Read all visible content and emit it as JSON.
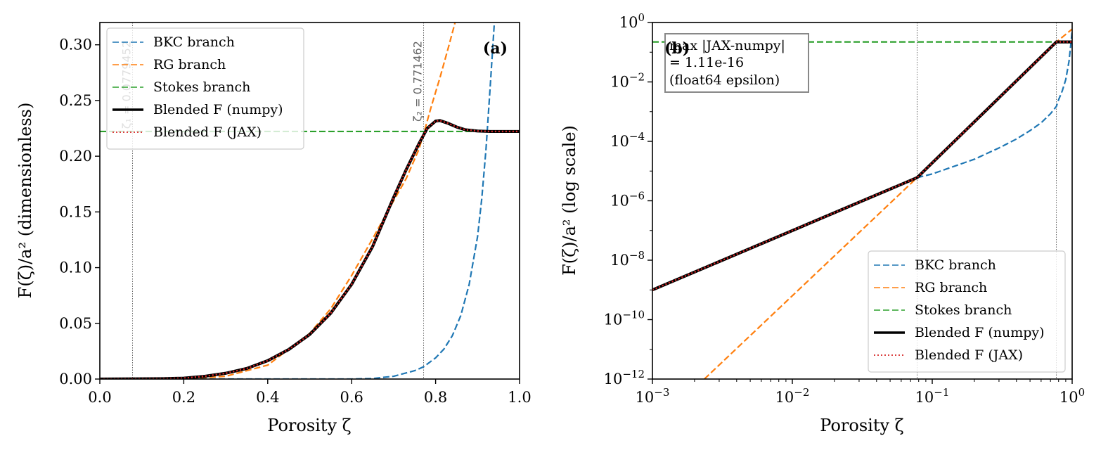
{
  "colors": {
    "bkc": "#1f77b4",
    "rg": "#ff7f0e",
    "stokes": "#2ca02c",
    "numpy": "#000000",
    "jax": "#d62728",
    "vline": "#555555"
  },
  "chart_data": [
    {
      "type": "line",
      "panel_label": "(a)",
      "title": "",
      "xlabel": "Porosity  ζ",
      "ylabel": "F(ζ)/a² (dimensionless)",
      "xlim": [
        0.0,
        1.0
      ],
      "ylim": [
        0.0,
        0.32
      ],
      "yscale": "linear",
      "xticks": [
        0.0,
        0.2,
        0.4,
        0.6,
        0.8,
        1.0
      ],
      "xtick_labels": [
        "0.0",
        "0.2",
        "0.4",
        "0.6",
        "0.8",
        "1.0"
      ],
      "yticks": [
        0.0,
        0.05,
        0.1,
        0.15,
        0.2,
        0.25,
        0.3
      ],
      "ytick_labels": [
        "0.00",
        "0.05",
        "0.10",
        "0.15",
        "0.20",
        "0.25",
        "0.30"
      ],
      "legend_position": "top-left",
      "vlines": [
        {
          "x": 0.0779452,
          "label": "ζ₁ = 0.0779452"
        },
        {
          "x": 0.771462,
          "label": "ζ₂ = 0.771462"
        }
      ],
      "series": [
        {
          "name": "BKC branch",
          "style": "dashed",
          "color_key": "bkc",
          "x": [
            0.0,
            0.1,
            0.2,
            0.3,
            0.4,
            0.5,
            0.6,
            0.65,
            0.7,
            0.75,
            0.771462,
            0.8,
            0.82,
            0.84,
            0.86,
            0.88,
            0.9,
            0.91,
            0.92,
            0.93,
            0.94
          ],
          "y": [
            0.0,
            2e-07,
            9e-07,
            2.1e-06,
            4.4e-06,
            8.5e-06,
            1.63e-05,
            0.00048,
            0.0025,
            0.0075,
            0.011,
            0.019,
            0.027,
            0.039,
            0.057,
            0.085,
            0.128,
            0.162,
            0.206,
            0.262,
            0.32
          ]
        },
        {
          "name": "RG branch",
          "style": "dashed",
          "color_key": "rg",
          "x": [
            0.0,
            0.2,
            0.3,
            0.4,
            0.5,
            0.55,
            0.6,
            0.65,
            0.7,
            0.73,
            0.76,
            0.771462,
            0.79,
            0.81,
            0.83,
            0.85
          ],
          "y": [
            0.0,
            0.0002,
            0.0025,
            0.0125,
            0.041,
            0.063,
            0.093,
            0.126,
            0.16,
            0.18,
            0.206,
            0.22,
            0.245,
            0.27,
            0.297,
            0.325
          ]
        },
        {
          "name": "Stokes branch",
          "style": "dashed",
          "color_key": "stokes",
          "x": [
            0.0,
            1.0
          ],
          "y": [
            0.2222,
            0.2222
          ]
        },
        {
          "name": "Blended F (numpy)",
          "style": "solid",
          "color_key": "numpy",
          "x": [
            0.0,
            0.15,
            0.2,
            0.25,
            0.3,
            0.35,
            0.4,
            0.45,
            0.5,
            0.55,
            0.6,
            0.65,
            0.7,
            0.73,
            0.76,
            0.78,
            0.8,
            0.81,
            0.83,
            0.85,
            0.87,
            0.9,
            0.93,
            0.96,
            1.0
          ],
          "y": [
            0.0,
            0.0003,
            0.0008,
            0.0025,
            0.0052,
            0.0095,
            0.0165,
            0.0265,
            0.04,
            0.059,
            0.085,
            0.119,
            0.163,
            0.188,
            0.211,
            0.225,
            0.2315,
            0.232,
            0.2295,
            0.2262,
            0.2238,
            0.2226,
            0.2222,
            0.2222,
            0.2222
          ]
        },
        {
          "name": "Blended F (JAX)",
          "style": "dotted",
          "color_key": "jax",
          "x": [
            0.0,
            0.15,
            0.2,
            0.25,
            0.3,
            0.35,
            0.4,
            0.45,
            0.5,
            0.55,
            0.6,
            0.65,
            0.7,
            0.73,
            0.76,
            0.78,
            0.8,
            0.81,
            0.83,
            0.85,
            0.87,
            0.9,
            0.93,
            0.96,
            1.0
          ],
          "y": [
            0.0,
            0.0003,
            0.0008,
            0.0025,
            0.0052,
            0.0095,
            0.0165,
            0.0265,
            0.04,
            0.059,
            0.085,
            0.119,
            0.163,
            0.188,
            0.211,
            0.225,
            0.2315,
            0.232,
            0.2295,
            0.2262,
            0.2238,
            0.2226,
            0.2222,
            0.2222,
            0.2222
          ]
        }
      ]
    },
    {
      "type": "line",
      "panel_label": "(b)",
      "title": "",
      "xlabel": "Porosity  ζ",
      "ylabel": "F(ζ)/a² (log scale)",
      "xscale": "log",
      "yscale": "log",
      "xlim": [
        0.001,
        1.0
      ],
      "ylim": [
        1e-12,
        1.0
      ],
      "xticks": [
        0.001,
        0.01,
        0.1,
        1.0
      ],
      "xtick_labels": [
        {
          "base": "10",
          "exp": "−3"
        },
        {
          "base": "10",
          "exp": "−2"
        },
        {
          "base": "10",
          "exp": "−1"
        },
        {
          "base": "10",
          "exp": "0"
        }
      ],
      "yticks": [
        1e-12,
        1e-10,
        1e-08,
        1e-06,
        0.0001,
        0.01,
        1.0
      ],
      "ytick_labels": [
        {
          "base": "10",
          "exp": "−12"
        },
        {
          "base": "10",
          "exp": "−10"
        },
        {
          "base": "10",
          "exp": "−8"
        },
        {
          "base": "10",
          "exp": "−6"
        },
        {
          "base": "10",
          "exp": "−4"
        },
        {
          "base": "10",
          "exp": "−2"
        },
        {
          "base": "10",
          "exp": "0"
        }
      ],
      "legend_position": "bottom-right",
      "annotation": [
        "max |JAX-numpy|",
        "= 1.11e-16",
        "(float64 epsilon)"
      ],
      "vlines": [
        {
          "x": 0.0779452
        },
        {
          "x": 0.771462
        }
      ],
      "series": [
        {
          "name": "BKC branch",
          "style": "dashed",
          "color_key": "bkc",
          "x": [
            0.0779452,
            0.1,
            0.2,
            0.3,
            0.4,
            0.5,
            0.6,
            0.7,
            0.771462,
            0.8,
            0.85,
            0.9,
            0.95,
            1.0
          ],
          "y": [
            6e-06,
            8e-06,
            2.5e-05,
            6e-05,
            0.00012,
            0.00023,
            0.00042,
            0.00085,
            0.0015,
            0.0025,
            0.005,
            0.012,
            0.05,
            0.5
          ]
        },
        {
          "name": "RG branch",
          "style": "dashed",
          "color_key": "rg",
          "x": [
            0.00235,
            0.0779452,
            0.771462,
            1.0
          ],
          "y": [
            1e-12,
            6e-06,
            0.22,
            0.6
          ]
        },
        {
          "name": "Stokes branch",
          "style": "dashed",
          "color_key": "stokes",
          "x": [
            0.001,
            1.0
          ],
          "y": [
            0.2222,
            0.2222
          ]
        },
        {
          "name": "Blended F (numpy)",
          "style": "solid",
          "color_key": "numpy",
          "x": [
            0.001,
            0.0779452,
            0.771462,
            1.0
          ],
          "y": [
            1e-09,
            6e-06,
            0.2222,
            0.2222
          ]
        },
        {
          "name": "Blended F (JAX)",
          "style": "dotted",
          "color_key": "jax",
          "x": [
            0.001,
            0.0779452,
            0.771462,
            1.0
          ],
          "y": [
            1e-09,
            6e-06,
            0.2222,
            0.2222
          ]
        }
      ]
    }
  ]
}
